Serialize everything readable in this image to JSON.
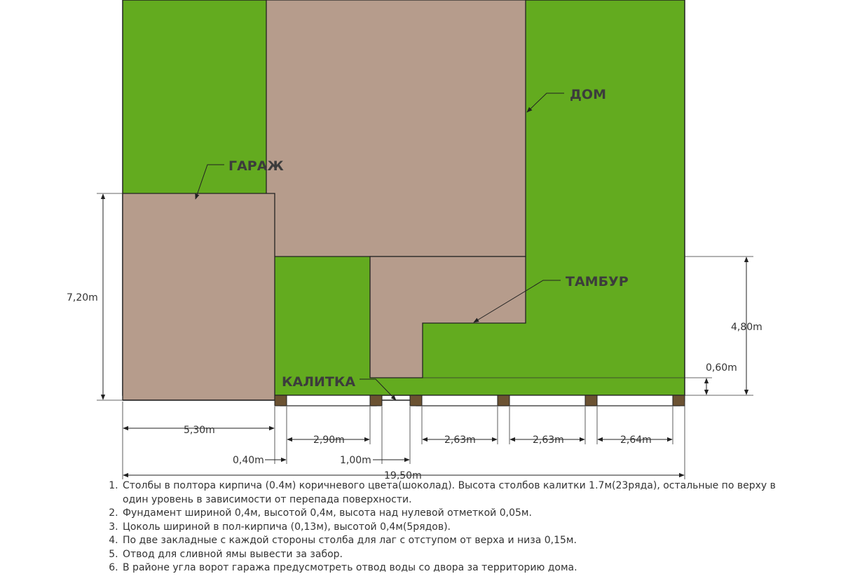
{
  "labels": {
    "house": "ДОМ",
    "garage": "ГАРАЖ",
    "vestibule": "ТАМБУР",
    "gate": "КАЛИТКА"
  },
  "dimensions": {
    "garage_width": "5,30m",
    "post_width": "0,40m",
    "span_1": "2,90m",
    "gate_width": "1,00m",
    "span_2": "2,63m",
    "span_3": "2,63m",
    "span_4": "2,64m",
    "total_width": "19,50m",
    "garage_depth": "7,20m",
    "house_offset": "4,80m",
    "vestibule_offset": "0,60m"
  },
  "colors": {
    "lawn": "#63ab1f",
    "building": "#b69c8c",
    "post": "#6b5232"
  },
  "notes": [
    "Столбы в полтора кирпича (0.4м) коричневого цвета(шоколад). Высота столбов калитки 1.7м(23ряда), остальные по верху в один уровень в зависимости от перепада поверхности.",
    "Фундамент шириной 0,4м, высотой 0,4м, высота над нулевой отметкой 0,05м.",
    "Цоколь шириной в пол-кирпича (0,13м), высотой 0,4м(5рядов).",
    "По две закладные с каждой стороны столба для лаг с отступом от верха и низа 0,15м.",
    "Отвод для сливной ямы вывести за забор.",
    "В районе угла ворот гаража предусмотреть отвод воды со двора за территорию дома."
  ]
}
